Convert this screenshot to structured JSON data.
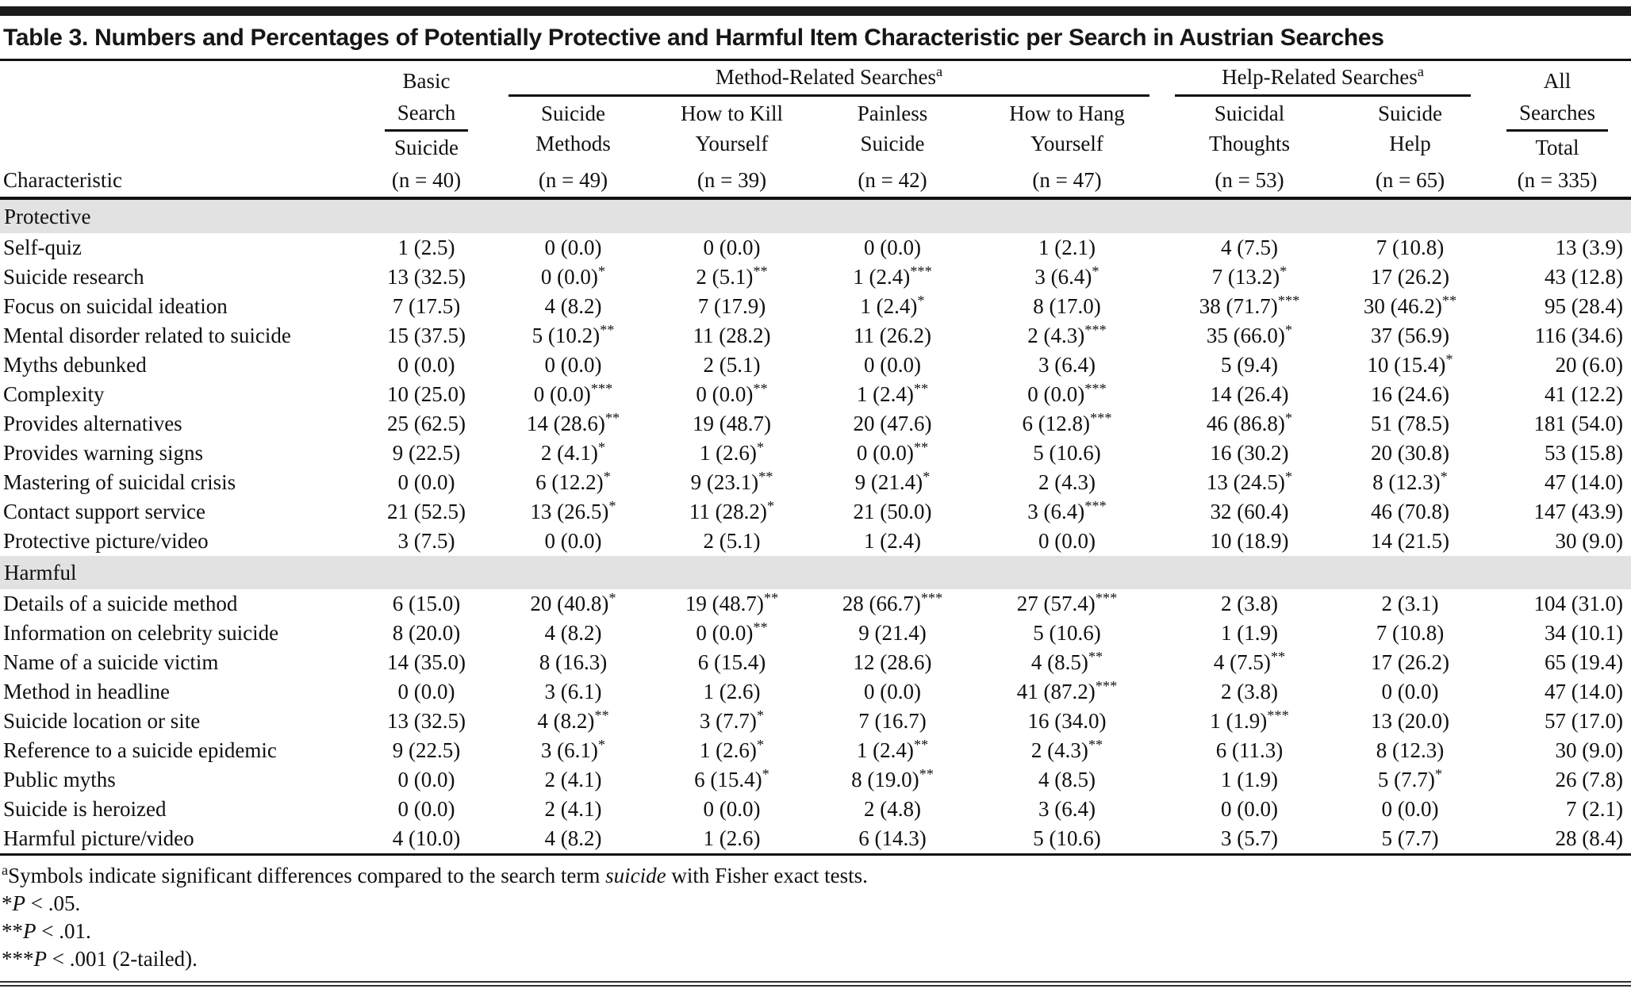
{
  "title": "Table 3. Numbers and Percentages of Potentially Protective and Harmful Item Characteristic per Search in Austrian Searches",
  "colors": {
    "section_band": "#e2e2e2",
    "rule": "#000000",
    "top_bar": "#1b1b1b"
  },
  "header": {
    "characteristic_label": "Characteristic",
    "groups": [
      {
        "label_lines": [
          "Basic",
          "Search"
        ],
        "sup": "",
        "cols": [
          {
            "lines": [
              "Suicide"
            ],
            "n": "(n = 40)"
          }
        ]
      },
      {
        "label_lines": [
          "Method-Related Searches"
        ],
        "sup": "a",
        "cols": [
          {
            "lines": [
              "Suicide",
              "Methods"
            ],
            "n": "(n = 49)"
          },
          {
            "lines": [
              "How to Kill",
              "Yourself"
            ],
            "n": "(n = 39)"
          },
          {
            "lines": [
              "Painless",
              "Suicide"
            ],
            "n": "(n = 42)"
          },
          {
            "lines": [
              "How to Hang",
              "Yourself"
            ],
            "n": "(n = 47)"
          }
        ]
      },
      {
        "label_lines": [
          "Help-Related Searches"
        ],
        "sup": "a",
        "cols": [
          {
            "lines": [
              "Suicidal",
              "Thoughts"
            ],
            "n": "(n = 53)"
          },
          {
            "lines": [
              "Suicide",
              "Help"
            ],
            "n": "(n = 65)"
          }
        ]
      },
      {
        "label_lines": [
          "All",
          "Searches"
        ],
        "sup": "",
        "cols": [
          {
            "lines": [
              "Total"
            ],
            "n": "(n = 335)"
          }
        ]
      }
    ]
  },
  "sections": [
    {
      "label": "Protective",
      "rows": [
        {
          "characteristic": "Self-quiz",
          "values": [
            "1 (2.5)",
            "0 (0.0)",
            "0 (0.0)",
            "0 (0.0)",
            "1 (2.1)",
            "4 (7.5)",
            "7 (10.8)",
            "13 (3.9)"
          ]
        },
        {
          "characteristic": "Suicide research",
          "values": [
            "13 (32.5)",
            "0 (0.0)*",
            "2 (5.1)**",
            "1 (2.4)***",
            "3 (6.4)*",
            "7 (13.2)*",
            "17 (26.2)",
            "43 (12.8)"
          ]
        },
        {
          "characteristic": "Focus on suicidal ideation",
          "values": [
            "7 (17.5)",
            "4 (8.2)",
            "7 (17.9)",
            "1 (2.4)*",
            "8 (17.0)",
            "38 (71.7)***",
            "30 (46.2)**",
            "95 (28.4)"
          ]
        },
        {
          "characteristic": "Mental disorder related to suicide",
          "values": [
            "15 (37.5)",
            "5 (10.2)**",
            "11 (28.2)",
            "11 (26.2)",
            "2 (4.3)***",
            "35 (66.0)*",
            "37 (56.9)",
            "116 (34.6)"
          ]
        },
        {
          "characteristic": "Myths debunked",
          "values": [
            "0 (0.0)",
            "0 (0.0)",
            "2 (5.1)",
            "0 (0.0)",
            "3 (6.4)",
            "5 (9.4)",
            "10 (15.4)*",
            "20 (6.0)"
          ]
        },
        {
          "characteristic": "Complexity",
          "values": [
            "10 (25.0)",
            "0 (0.0)***",
            "0 (0.0)**",
            "1 (2.4)**",
            "0 (0.0)***",
            "14 (26.4)",
            "16 (24.6)",
            "41 (12.2)"
          ]
        },
        {
          "characteristic": "Provides alternatives",
          "values": [
            "25 (62.5)",
            "14 (28.6)**",
            "19 (48.7)",
            "20 (47.6)",
            "6 (12.8)***",
            "46 (86.8)*",
            "51 (78.5)",
            "181 (54.0)"
          ]
        },
        {
          "characteristic": "Provides warning signs",
          "values": [
            "9 (22.5)",
            "2 (4.1)*",
            "1 (2.6)*",
            "0 (0.0)**",
            "5 (10.6)",
            "16 (30.2)",
            "20 (30.8)",
            "53 (15.8)"
          ]
        },
        {
          "characteristic": "Mastering of suicidal crisis",
          "values": [
            "0 (0.0)",
            "6 (12.2)*",
            "9 (23.1)**",
            "9 (21.4)*",
            "2 (4.3)",
            "13 (24.5)*",
            "8 (12.3)*",
            "47 (14.0)"
          ]
        },
        {
          "characteristic": "Contact support service",
          "values": [
            "21 (52.5)",
            "13 (26.5)*",
            "11 (28.2)*",
            "21 (50.0)",
            "3 (6.4)***",
            "32 (60.4)",
            "46 (70.8)",
            "147 (43.9)"
          ]
        },
        {
          "characteristic": "Protective picture/video",
          "values": [
            "3 (7.5)",
            "0 (0.0)",
            "2 (5.1)",
            "1 (2.4)",
            "0 (0.0)",
            "10 (18.9)",
            "14 (21.5)",
            "30 (9.0)"
          ]
        }
      ]
    },
    {
      "label": "Harmful",
      "rows": [
        {
          "characteristic": "Details of a suicide method",
          "values": [
            "6 (15.0)",
            "20 (40.8)*",
            "19 (48.7)**",
            "28 (66.7)***",
            "27 (57.4)***",
            "2 (3.8)",
            "2 (3.1)",
            "104 (31.0)"
          ]
        },
        {
          "characteristic": "Information on celebrity suicide",
          "values": [
            "8 (20.0)",
            "4 (8.2)",
            "0 (0.0)**",
            "9 (21.4)",
            "5 (10.6)",
            "1 (1.9)",
            "7 (10.8)",
            "34 (10.1)"
          ]
        },
        {
          "characteristic": "Name of a suicide victim",
          "values": [
            "14 (35.0)",
            "8 (16.3)",
            "6 (15.4)",
            "12 (28.6)",
            "4 (8.5)**",
            "4 (7.5)**",
            "17 (26.2)",
            "65 (19.4)"
          ]
        },
        {
          "characteristic": "Method in headline",
          "values": [
            "0 (0.0)",
            "3 (6.1)",
            "1 (2.6)",
            "0 (0.0)",
            "41 (87.2)***",
            "2 (3.8)",
            "0 (0.0)",
            "47 (14.0)"
          ]
        },
        {
          "characteristic": "Suicide location or site",
          "values": [
            "13 (32.5)",
            "4 (8.2)**",
            "3 (7.7)*",
            "7 (16.7)",
            "16 (34.0)",
            "1 (1.9)***",
            "13 (20.0)",
            "57 (17.0)"
          ]
        },
        {
          "characteristic": "Reference to a suicide epidemic",
          "values": [
            "9 (22.5)",
            "3 (6.1)*",
            "1 (2.6)*",
            "1 (2.4)**",
            "2 (4.3)**",
            "6 (11.3)",
            "8 (12.3)",
            "30 (9.0)"
          ]
        },
        {
          "characteristic": "Public myths",
          "values": [
            "0 (0.0)",
            "2 (4.1)",
            "6 (15.4)*",
            "8 (19.0)**",
            "4 (8.5)",
            "1 (1.9)",
            "5 (7.7)*",
            "26 (7.8)"
          ]
        },
        {
          "characteristic": "Suicide is heroized",
          "values": [
            "0 (0.0)",
            "2 (4.1)",
            "0 (0.0)",
            "2 (4.8)",
            "3 (6.4)",
            "0 (0.0)",
            "0 (0.0)",
            "7 (2.1)"
          ]
        },
        {
          "characteristic": "Harmful picture/video",
          "values": [
            "4 (10.0)",
            "4 (8.2)",
            "1 (2.6)",
            "6 (14.3)",
            "5 (10.6)",
            "3 (5.7)",
            "5 (7.7)",
            "28 (8.4)"
          ]
        }
      ]
    }
  ],
  "footnotes": {
    "symbols": {
      "marker": "a",
      "pre": "Symbols indicate significant differences compared to the search term ",
      "italic": "suicide",
      "post": " with Fisher exact tests."
    },
    "p_lines": [
      {
        "stars": "*",
        "p": "P",
        "rest": " < .05."
      },
      {
        "stars": "**",
        "p": "P",
        "rest": " < .01."
      },
      {
        "stars": "***",
        "p": "P",
        "rest": " < .001 (2-tailed)."
      }
    ]
  }
}
